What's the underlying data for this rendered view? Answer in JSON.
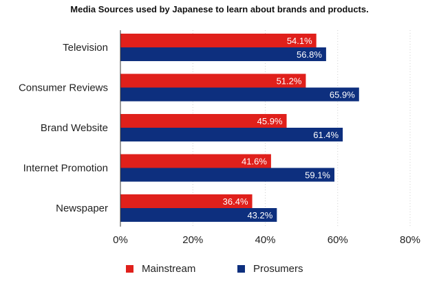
{
  "chart_data": {
    "type": "bar",
    "orientation": "horizontal",
    "title": "Media Sources used by Japanese to learn about brands and products.",
    "categories": [
      "Television",
      "Consumer Reviews",
      "Brand Website",
      "Internet Promotion",
      "Newspaper"
    ],
    "series": [
      {
        "name": "Mainstream",
        "color": "#e0201b",
        "values": [
          54.1,
          51.2,
          45.9,
          41.6,
          36.4
        ],
        "labels": [
          "54.1%",
          "51.2%",
          "45.9%",
          "41.6%",
          "36.4%"
        ]
      },
      {
        "name": "Prosumers",
        "color": "#0d2f7e",
        "values": [
          56.8,
          65.9,
          61.4,
          59.1,
          43.2
        ],
        "labels": [
          "56.8%",
          "65.9%",
          "61.4%",
          "59.1%",
          "43.2%"
        ]
      }
    ],
    "xlim": [
      0,
      80
    ],
    "xticks": [
      0,
      20,
      40,
      60,
      80
    ],
    "xtick_labels": [
      "0%",
      "20%",
      "40%",
      "60%",
      "80%"
    ],
    "grid": "dotted vertical",
    "legend": "bottom"
  }
}
